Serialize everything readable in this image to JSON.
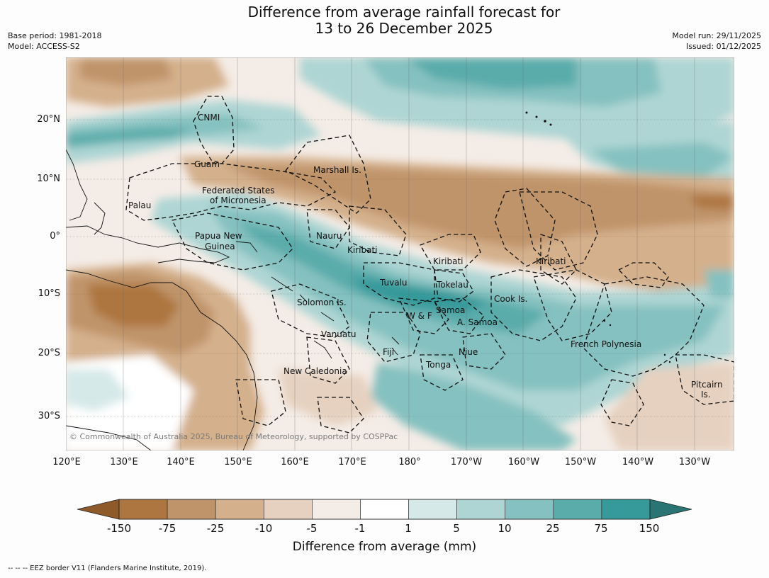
{
  "title": {
    "line1": "Difference from average rainfall forecast for",
    "line2": "13 to 26 December 2025"
  },
  "meta_left": {
    "base_period": "Base period: 1981-2018",
    "model": "Model: ACCESS-S2"
  },
  "meta_right": {
    "model_run": "Model run: 29/11/2025",
    "issued": "Issued: 01/12/2025"
  },
  "latitude_labels": [
    "20°N",
    "10°N",
    "0°",
    "10°S",
    "20°S",
    "30°S"
  ],
  "longitude_labels": [
    "120°E",
    "130°E",
    "140°E",
    "150°E",
    "160°E",
    "170°E",
    "180°",
    "170°W",
    "160°W",
    "150°W",
    "140°W",
    "130°W"
  ],
  "places": [
    {
      "name": "CNMI"
    },
    {
      "name": "Guam"
    },
    {
      "name": "Marshall Is."
    },
    {
      "name": "Federated States"
    },
    {
      "name": "of Micronesia"
    },
    {
      "name": "Palau"
    },
    {
      "name": "Papua New"
    },
    {
      "name": "Guinea"
    },
    {
      "name": "Nauru"
    },
    {
      "name": "Kiribati"
    },
    {
      "name": "Kiribati"
    },
    {
      "name": "Kiribati"
    },
    {
      "name": "Tuvalu"
    },
    {
      "name": "Tokelau"
    },
    {
      "name": "Cook Is."
    },
    {
      "name": "Solomon Is."
    },
    {
      "name": "W & F"
    },
    {
      "name": "Samoa"
    },
    {
      "name": "A. Samoa"
    },
    {
      "name": "Vanuatu"
    },
    {
      "name": "Fiji"
    },
    {
      "name": "Niue"
    },
    {
      "name": "Tonga"
    },
    {
      "name": "French Polynesia"
    },
    {
      "name": "New Caledonia"
    },
    {
      "name": "Pitcairn"
    },
    {
      "name": "Is."
    }
  ],
  "copyright": "© Commonwealth of Australia 2025, Bureau of Meteorology, supported by COSPPac",
  "colorbar": {
    "ticks": [
      "-150",
      "-75",
      "-25",
      "-10",
      "-5",
      "-1",
      "1",
      "5",
      "10",
      "25",
      "75",
      "150"
    ],
    "colors": [
      "#8e5a2a",
      "#ad7640",
      "#c0946a",
      "#d4b08c",
      "#e6d1c0",
      "#f4ece6",
      "#ffffff",
      "#d5e9e8",
      "#aed5d4",
      "#85c1c0",
      "#5aacab",
      "#36999a",
      "#2a7474"
    ],
    "label": "Difference from average (mm)"
  },
  "footer": "--  --  -- EEZ border V11 (Flanders Marine Institute, 2019)."
}
